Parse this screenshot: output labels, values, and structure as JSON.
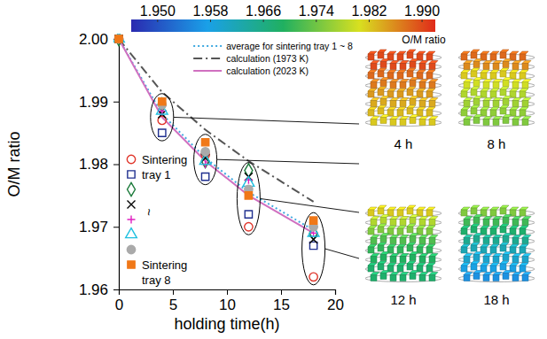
{
  "chart_data": {
    "type": "line",
    "xlabel": "holding time(h)",
    "ylabel": "O/M ratio",
    "xlim": [
      0,
      20
    ],
    "xticks": [
      0,
      5,
      10,
      15,
      20
    ],
    "ylim": [
      1.96,
      2.0
    ],
    "yticks": [
      1.96,
      1.97,
      1.98,
      1.99,
      {
        "value": 2.0,
        "label": "2.00"
      }
    ],
    "legend": "upper right",
    "series": [
      {
        "name": "average for sintering tray 1 ~ 8",
        "type": "line",
        "color": "#3fa9e0",
        "line_style": "dotted",
        "x": [
          0,
          4,
          8,
          12,
          18
        ],
        "values": [
          2.0,
          1.988,
          1.981,
          1.9755,
          1.9695
        ]
      },
      {
        "name": "calculation (1973 K)",
        "type": "line",
        "color": "#555555",
        "line_style": "dashdot",
        "x": [
          0,
          4,
          8,
          12,
          18
        ],
        "values": [
          2.0,
          1.9915,
          1.9855,
          1.9805,
          1.974
        ]
      },
      {
        "name": "calculation (2023 K)",
        "type": "line",
        "color": "#d070c0",
        "line_style": "solid",
        "x": [
          0,
          4,
          8,
          12,
          18
        ],
        "values": [
          2.0,
          1.9875,
          1.9805,
          1.975,
          1.969
        ]
      },
      {
        "name": "Sintering tray 1",
        "type": "scatter",
        "color": "#e0362b",
        "marker": "circle-open",
        "x": [
          0,
          4,
          8,
          12,
          18
        ],
        "values": [
          2.0,
          1.987,
          1.9815,
          1.97,
          1.962
        ]
      },
      {
        "name": null,
        "type": "scatter",
        "color": "#1f2f8f",
        "marker": "square-open",
        "x": [
          0,
          4,
          8,
          12,
          18
        ],
        "values": [
          2.0,
          1.985,
          1.978,
          1.972,
          1.967
        ]
      },
      {
        "name": null,
        "type": "scatter",
        "color": "#1b7a3a",
        "marker": "diamond-open",
        "x": [
          0,
          4,
          8,
          12,
          18
        ],
        "values": [
          2.0,
          1.9895,
          1.9805,
          1.979,
          1.969
        ]
      },
      {
        "name": null,
        "type": "scatter",
        "color": "#000000",
        "marker": "x",
        "x": [
          0,
          4,
          8,
          12,
          18
        ],
        "values": [
          2.0,
          1.988,
          1.981,
          1.978,
          1.968
        ]
      },
      {
        "name": null,
        "type": "scatter",
        "color": "#e020c0",
        "marker": "plus",
        "x": [
          0,
          4,
          8,
          12,
          18
        ],
        "values": [
          2.0,
          1.9885,
          1.98,
          1.9775,
          1.969
        ]
      },
      {
        "name": null,
        "type": "scatter",
        "color": "#20c0e0",
        "marker": "triangle-open",
        "x": [
          0,
          4,
          8,
          12,
          18
        ],
        "values": [
          2.0,
          1.9885,
          1.9805,
          1.977,
          1.969
        ]
      },
      {
        "name": null,
        "type": "scatter",
        "color": "#aaaaaa",
        "marker": "circle",
        "x": [
          0,
          4,
          8,
          12,
          18
        ],
        "values": [
          2.0,
          1.9895,
          1.982,
          1.976,
          1.97
        ]
      },
      {
        "name": "Sintering tray 8",
        "type": "scatter",
        "color": "#f07818",
        "marker": "square",
        "x": [
          0,
          4,
          8,
          12,
          18
        ],
        "values": [
          2.0,
          1.99,
          1.9835,
          1.975,
          1.971
        ]
      }
    ],
    "annotations": [
      "~"
    ],
    "colorbar": {
      "label": "O/M ratio",
      "range": [
        1.946,
        1.992
      ],
      "ticks": [
        {
          "value": 1.95,
          "label": "1.950"
        },
        {
          "value": 1.958,
          "label": "1.958"
        },
        {
          "value": 1.966,
          "label": "1.966"
        },
        {
          "value": 1.974,
          "label": "1.974"
        },
        {
          "value": 1.982,
          "label": "1.982"
        },
        {
          "value": 1.99,
          "label": "1.990"
        }
      ],
      "colors": [
        "#2a2ab0",
        "#1aa0e8",
        "#20b060",
        "#d8e020",
        "#e02a1a"
      ]
    },
    "snapshots": [
      {
        "label": "4 h",
        "x": 4,
        "tray_values": [
          1.99,
          1.99,
          1.988,
          1.987,
          1.985,
          1.984,
          1.983,
          1.982
        ]
      },
      {
        "label": "8 h",
        "x": 8,
        "tray_values": [
          1.988,
          1.986,
          1.982,
          1.98,
          1.978,
          1.977,
          1.976,
          1.975
        ]
      },
      {
        "label": "12 h",
        "x": 12,
        "tray_values": [
          1.982,
          1.978,
          1.975,
          1.972,
          1.97,
          1.969,
          1.968,
          1.968
        ]
      },
      {
        "label": "18 h",
        "x": 18,
        "tray_values": [
          1.975,
          1.971,
          1.968,
          1.965,
          1.962,
          1.96,
          1.958,
          1.956
        ]
      }
    ]
  }
}
